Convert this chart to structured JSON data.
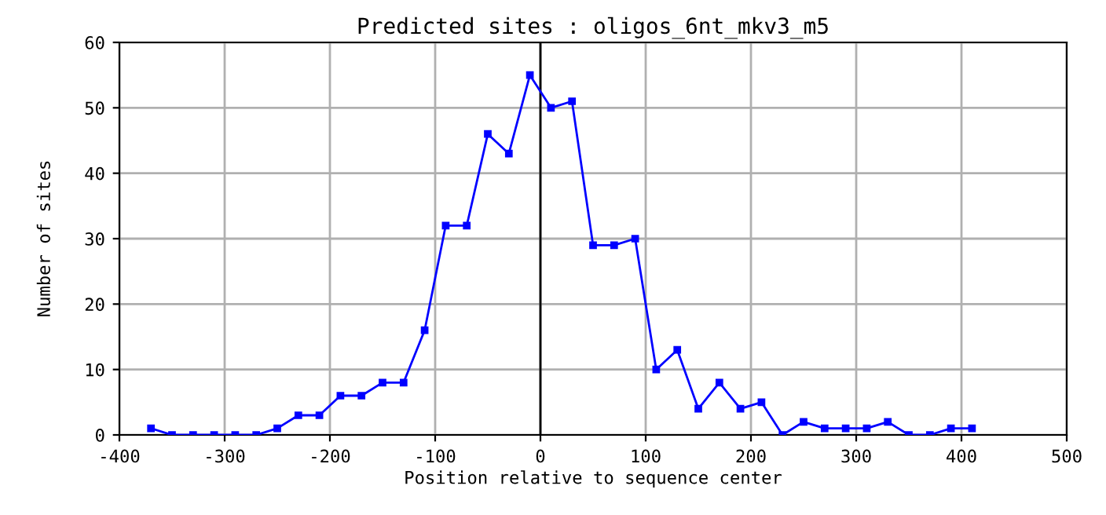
{
  "chart_data": {
    "type": "line",
    "title": "Predicted sites : oligos_6nt_mkv3_m5",
    "xlabel": "Position relative to sequence center",
    "ylabel": "Number of sites",
    "x": [
      -370,
      -350,
      -330,
      -310,
      -290,
      -270,
      -250,
      -230,
      -210,
      -190,
      -170,
      -150,
      -130,
      -110,
      -90,
      -70,
      -50,
      -30,
      -10,
      10,
      30,
      50,
      70,
      90,
      110,
      130,
      150,
      170,
      190,
      210,
      230,
      250,
      270,
      290,
      310,
      330,
      350,
      370,
      390,
      410
    ],
    "series": [
      {
        "color": "#0000ff",
        "values": [
          1,
          0,
          0,
          0,
          0,
          0,
          1,
          3,
          3,
          6,
          6,
          8,
          8,
          16,
          32,
          32,
          46,
          43,
          55,
          50,
          51,
          29,
          29,
          30,
          10,
          13,
          4,
          8,
          4,
          5,
          0,
          2,
          1,
          1,
          1,
          2,
          0,
          0,
          1,
          1
        ]
      }
    ],
    "xlim": [
      -400,
      500
    ],
    "xticks": [
      -400,
      -300,
      -200,
      -100,
      0,
      100,
      200,
      300,
      400,
      500
    ],
    "ylim": [
      0,
      60
    ],
    "yticks": [
      0,
      10,
      20,
      30,
      40,
      50,
      60
    ],
    "ref_lines": [
      {
        "axis": "x",
        "value": 0,
        "color": "#000000"
      }
    ],
    "grid": true,
    "marker": "square",
    "line_style": "solid"
  }
}
